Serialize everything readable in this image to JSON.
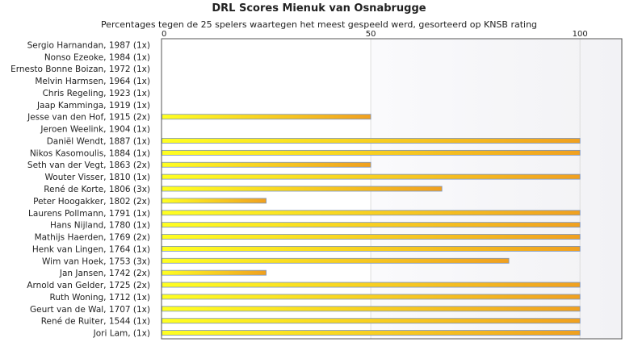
{
  "chart_data": {
    "type": "bar",
    "orientation": "horizontal",
    "title": "DRL Scores Mienuk van Osnabrugge",
    "subtitle": "Percentages tegen de 25 spelers waartegen het meest gespeeld werd, gesorteerd op KNSB rating",
    "xlim": [
      0,
      110
    ],
    "xticks": [
      0,
      50,
      100
    ],
    "grid": true,
    "categories": [
      "Sergio Harnandan, 1987 (1x)",
      "Nonso Ezeoke, 1984 (1x)",
      "Ernesto Bonne Boizan, 1972 (1x)",
      "Melvin Harmsen, 1964 (1x)",
      "Chris Regeling, 1923 (1x)",
      "Jaap Kamminga, 1919 (1x)",
      "Jesse van den Hof, 1915 (2x)",
      "Jeroen Weelink, 1904 (1x)",
      "Daniël Wendt, 1887 (1x)",
      "Nikos Kasomoulis, 1884 (1x)",
      "Seth van der Vegt, 1863 (2x)",
      "Wouter Visser, 1810 (1x)",
      "René de Korte, 1806 (3x)",
      "Peter Hoogakker, 1802 (2x)",
      "Laurens Pollmann, 1791 (1x)",
      "Hans Nijland, 1780 (1x)",
      "Mathijs Haerden, 1769 (2x)",
      "Henk van Lingen, 1764 (1x)",
      "Wim van Hoek, 1753 (3x)",
      "Jan Jansen, 1742 (2x)",
      "Arnold van Gelder, 1725 (2x)",
      "Ruth Woning, 1712 (1x)",
      "Geurt van de Wal, 1707 (1x)",
      "René de Ruiter, 1544 (1x)",
      "Jori Lam,  (1x)"
    ],
    "values": [
      0,
      0,
      0,
      0,
      0,
      0,
      50,
      0,
      100,
      100,
      50,
      100,
      67,
      25,
      100,
      100,
      100,
      100,
      83,
      25,
      100,
      100,
      100,
      100,
      100
    ],
    "colors": {
      "bar_start": "#ffff22",
      "bar_end": "#f0a020",
      "bar_border": "#7a94c0",
      "band": "#f2f2f5",
      "grid": "#dddddd"
    }
  }
}
